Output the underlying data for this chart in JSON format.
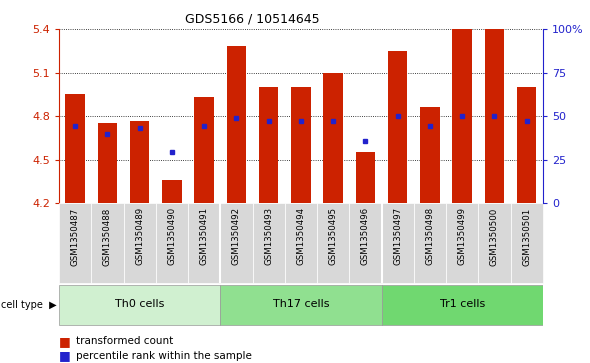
{
  "title": "GDS5166 / 10514645",
  "samples": [
    "GSM1350487",
    "GSM1350488",
    "GSM1350489",
    "GSM1350490",
    "GSM1350491",
    "GSM1350492",
    "GSM1350493",
    "GSM1350494",
    "GSM1350495",
    "GSM1350496",
    "GSM1350497",
    "GSM1350498",
    "GSM1350499",
    "GSM1350500",
    "GSM1350501"
  ],
  "bar_heights": [
    4.95,
    4.75,
    4.77,
    4.36,
    4.93,
    5.28,
    5.0,
    5.0,
    5.1,
    4.55,
    5.25,
    4.86,
    5.4,
    5.4,
    5.0
  ],
  "blue_dot_y": [
    4.73,
    4.68,
    4.72,
    4.55,
    4.73,
    4.79,
    4.77,
    4.77,
    4.77,
    4.63,
    4.8,
    4.73,
    4.8,
    4.8,
    4.77
  ],
  "cell_groups": [
    {
      "label": "Th0 cells",
      "start": 0,
      "end": 5,
      "color": "#d0f0d0"
    },
    {
      "label": "Th17 cells",
      "start": 5,
      "end": 10,
      "color": "#90e090"
    },
    {
      "label": "Tr1 cells",
      "start": 10,
      "end": 15,
      "color": "#70d870"
    }
  ],
  "ymin": 4.2,
  "ymax": 5.4,
  "yticks": [
    4.2,
    4.5,
    4.8,
    5.1,
    5.4
  ],
  "ytick_labels": [
    "4.2",
    "4.5",
    "4.8",
    "5.1",
    "5.4"
  ],
  "right_yticks": [
    0,
    25,
    50,
    75,
    100
  ],
  "right_ytick_labels": [
    "0",
    "25",
    "50",
    "75",
    "100%"
  ],
  "bar_color": "#cc2200",
  "dot_color": "#2222cc",
  "tick_color_left": "#cc2200",
  "tick_color_right": "#2222cc",
  "bg_color": "#ffffff",
  "plot_bg": "#ffffff",
  "label_bg": "#d8d8d8",
  "bar_width": 0.6
}
